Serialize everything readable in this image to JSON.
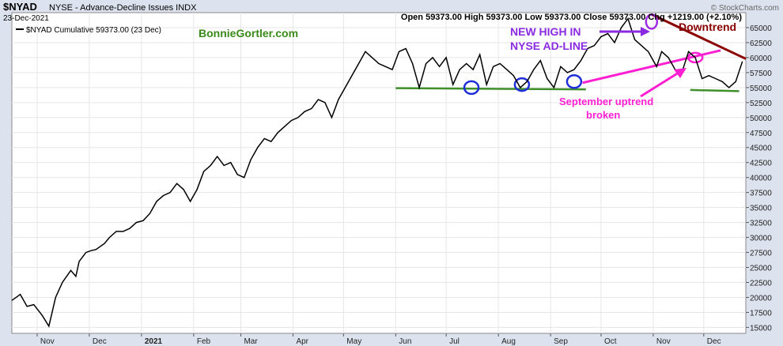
{
  "header": {
    "symbol": "$NYAD",
    "description": "NYSE - Advance-Decline Issues INDX",
    "date": "23-Dec-2021",
    "ohlc": "Open 59373.00  High 59373.00  Low 59373.00  Close 59373.00  Chg +1219.00 (+2.10%)",
    "watermark": "© StockCharts.com"
  },
  "chart_data": {
    "type": "line",
    "legend": "$NYAD Cumulative 59373.00 (23 Dec)",
    "legend_position": "top-left",
    "y_axis_position": "right",
    "grid": true,
    "ylim": [
      14000,
      67500
    ],
    "y_ticks": [
      15000,
      17500,
      20000,
      22500,
      25000,
      27500,
      30000,
      32500,
      35000,
      37500,
      40000,
      42500,
      45000,
      47500,
      50000,
      52500,
      55000,
      57500,
      60000,
      62500,
      65000
    ],
    "x_ticks": [
      {
        "label": "Nov",
        "day": 15
      },
      {
        "label": "Dec",
        "day": 46
      },
      {
        "label": "2021",
        "day": 77,
        "bold": true
      },
      {
        "label": "Feb",
        "day": 108
      },
      {
        "label": "Mar",
        "day": 136
      },
      {
        "label": "Apr",
        "day": 167
      },
      {
        "label": "May",
        "day": 197
      },
      {
        "label": "Jun",
        "day": 228
      },
      {
        "label": "Jul",
        "day": 258
      },
      {
        "label": "Aug",
        "day": 289
      },
      {
        "label": "Sep",
        "day": 320
      },
      {
        "label": "Oct",
        "day": 350
      },
      {
        "label": "Nov",
        "day": 381
      },
      {
        "label": "Dec",
        "day": 411
      }
    ],
    "xlim_days": [
      0,
      436
    ],
    "series": [
      {
        "color": "#000000",
        "x": [
          0,
          5,
          9,
          13,
          18,
          22,
          26,
          30,
          35,
          38,
          40,
          44,
          47,
          50,
          55,
          58,
          62,
          66,
          70,
          74,
          78,
          82,
          86,
          90,
          94,
          98,
          102,
          106,
          110,
          114,
          118,
          122,
          126,
          130,
          134,
          138,
          142,
          146,
          150,
          154,
          158,
          162,
          166,
          170,
          174,
          178,
          182,
          186,
          190,
          194,
          198,
          202,
          206,
          210,
          214,
          218,
          222,
          226,
          230,
          234,
          238,
          242,
          246,
          250,
          254,
          258,
          262,
          266,
          270,
          274,
          278,
          282,
          286,
          290,
          294,
          298,
          302,
          306,
          310,
          314,
          318,
          322,
          326,
          330,
          334,
          338,
          342,
          346,
          350,
          354,
          358,
          362,
          366,
          370,
          374,
          378,
          380,
          383,
          386,
          390,
          394,
          398,
          402,
          406,
          410,
          414,
          418,
          422,
          426,
          430,
          434
        ],
        "values": [
          19500,
          20500,
          18500,
          18800,
          17000,
          15200,
          20000,
          22500,
          24500,
          23500,
          26000,
          27500,
          27800,
          28000,
          29000,
          30000,
          31000,
          31000,
          31500,
          32500,
          32800,
          34000,
          36000,
          37000,
          37500,
          39000,
          38000,
          36000,
          38000,
          41000,
          42000,
          43500,
          42000,
          42500,
          40500,
          40000,
          43000,
          45000,
          46500,
          46000,
          47500,
          48500,
          49500,
          50000,
          51000,
          51500,
          53000,
          52500,
          50000,
          53000,
          55000,
          57000,
          59000,
          61000,
          60000,
          59000,
          58500,
          58000,
          61000,
          61500,
          59000,
          55000,
          59000,
          60000,
          58500,
          60000,
          55500,
          58000,
          59000,
          58000,
          60500,
          55500,
          58500,
          59000,
          58000,
          57000,
          55000,
          56000,
          58000,
          59500,
          56500,
          55000,
          58500,
          57500,
          58000,
          59500,
          61500,
          62000,
          63500,
          64000,
          62500,
          65000,
          66500,
          63000,
          62000,
          61000,
          60000,
          58500,
          61000,
          60000,
          58000,
          57500,
          61000,
          60000,
          56500,
          57000,
          56500,
          56000,
          55000,
          56000,
          59373
        ]
      }
    ],
    "annotations": [
      {
        "text": "BonnieGortler.com",
        "color": "#3a8a1a"
      },
      {
        "text": "NEW HIGH IN",
        "color": "#8a2be2"
      },
      {
        "text": "NYSE AD-LINE",
        "color": "#8a2be2"
      },
      {
        "text": "Downtrend",
        "color": "#8b0000"
      },
      {
        "text": "September uptrend",
        "color": "#ff1fd2"
      },
      {
        "text": "broken",
        "color": "#ff1fd2"
      }
    ],
    "overlays": {
      "support_line": {
        "color": "#3f8f2a",
        "segments": [
          [
            228,
            341,
            54900,
            54700
          ],
          [
            403,
            432,
            54600,
            54400
          ]
        ]
      },
      "downtrend_line": {
        "color": "#8b0000",
        "from": [
          380,
          67200
        ],
        "to": [
          436,
          59800
        ]
      },
      "uptrend_line": {
        "color": "#ff1fd2",
        "from": [
          339,
          55800
        ],
        "to": [
          421,
          61200
        ]
      },
      "blue_circles": [
        [
          273,
          55000
        ],
        [
          303,
          55500
        ],
        [
          334,
          56000
        ]
      ],
      "purple_circle": [
        380,
        66000
      ],
      "magenta_circle": [
        406,
        60000
      ]
    }
  }
}
